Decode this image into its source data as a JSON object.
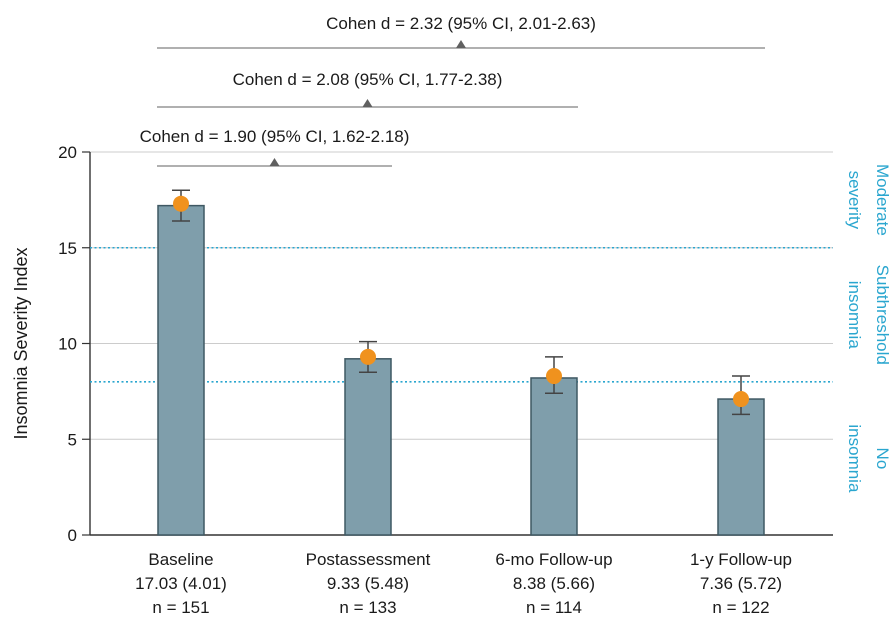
{
  "chart_data": {
    "type": "bar",
    "ylabel": "Insomnia Severity Index",
    "ylim": [
      0,
      20
    ],
    "yticks": [
      0,
      5,
      10,
      15,
      20
    ],
    "categories": [
      {
        "name": "Baseline",
        "stat": "17.03 (4.01)",
        "n": "n = 151"
      },
      {
        "name": "Postassessment",
        "stat": "9.33 (5.48)",
        "n": "n = 133"
      },
      {
        "name": "6-mo Follow-up",
        "stat": "8.38 (5.66)",
        "n": "n = 114"
      },
      {
        "name": "1-y Follow-up",
        "stat": "7.36 (5.72)",
        "n": "n = 122"
      }
    ],
    "values": [
      17.2,
      9.2,
      8.2,
      7.1
    ],
    "points": [
      17.3,
      9.3,
      8.3,
      7.1
    ],
    "error_low": [
      16.4,
      8.5,
      7.4,
      6.3
    ],
    "error_high": [
      18.0,
      10.1,
      9.3,
      8.3
    ],
    "thresholds": [
      15,
      8
    ],
    "zones": [
      {
        "label": "Moderate severity",
        "lines": [
          "Moderate",
          "severity"
        ],
        "from": 15,
        "to": 20
      },
      {
        "label": "Subthreshold insomnia",
        "lines": [
          "Subthreshold",
          "insomnia"
        ],
        "from": 8,
        "to": 15
      },
      {
        "label": "No insomnia",
        "lines": [
          "No",
          "insomnia"
        ],
        "from": 0,
        "to": 8
      }
    ],
    "comparisons": [
      {
        "label": "Cohen d = 1.90 (95% CI, 1.62-2.18)",
        "from": 0,
        "to": 1
      },
      {
        "label": "Cohen d = 2.08 (95% CI, 1.77-2.38)",
        "from": 0,
        "to": 2
      },
      {
        "label": "Cohen d = 2.32 (95% CI, 2.01-2.63)",
        "from": 0,
        "to": 3
      }
    ],
    "colors": {
      "bar_fill": "#7f9eab",
      "bar_stroke": "#3f5863",
      "point": "#f0921e",
      "error_bar": "#444444",
      "grid": "#cccccc",
      "threshold": "#2aa6cf",
      "zone_text": "#2aa6cf",
      "comparison_line": "#808080"
    },
    "grid": true
  }
}
